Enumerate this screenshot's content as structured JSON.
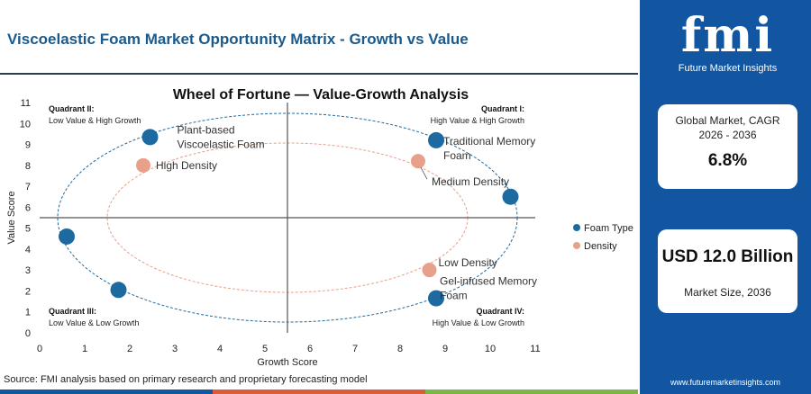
{
  "header": {
    "title": "Viscoelastic Foam Market Opportunity Matrix - Growth vs Value"
  },
  "source": "Source: FMI analysis based on primary research and proprietary forecasting model",
  "colors": {
    "foam_type": "#1c6aa0",
    "density": "#e8a08a",
    "title_blue": "#1b5a8a",
    "panel_blue": "#1255a0"
  },
  "chart_data": {
    "type": "scatter",
    "title": "Wheel of Fortune — Value-Growth Analysis",
    "xlabel": "Growth Score",
    "ylabel": "Value Score",
    "xlim": [
      0,
      11
    ],
    "ylim": [
      0,
      11
    ],
    "xticks": [
      0,
      1,
      2,
      3,
      4,
      5,
      6,
      7,
      8,
      9,
      10,
      11
    ],
    "yticks": [
      0,
      1,
      2,
      3,
      4,
      5,
      6,
      7,
      8,
      9,
      10,
      11
    ],
    "grid": false,
    "legend_position": "right",
    "divider": {
      "x": 5.5,
      "y": 5.5
    },
    "quadrants": [
      {
        "title": "Quadrant II:",
        "subtitle": "Low Value & High Growth",
        "position": "top-left"
      },
      {
        "title": "Quadrant I:",
        "subtitle": "High Value & High Growth",
        "position": "top-right"
      },
      {
        "title": "Quadrant III:",
        "subtitle": "Low Value & Low Growth",
        "position": "bottom-left"
      },
      {
        "title": "Quadrant IV:",
        "subtitle": "High Value & Low Growth",
        "position": "bottom-right"
      }
    ],
    "series": [
      {
        "name": "Foam Type",
        "color": "#1c6aa0",
        "points": [
          {
            "x": 2.45,
            "y": 9.35,
            "label": [
              "Plant-based",
              "Viscoelastic Foam"
            ]
          },
          {
            "x": 8.8,
            "y": 9.2,
            "label": [
              "Traditional Memory",
              "Foam"
            ]
          },
          {
            "x": 10.45,
            "y": 6.5,
            "label": []
          },
          {
            "x": 0.6,
            "y": 4.6,
            "label": []
          },
          {
            "x": 1.75,
            "y": 2.05,
            "label": []
          },
          {
            "x": 8.8,
            "y": 1.65,
            "label": [
              "Gel-infused Memory",
              "Foam"
            ]
          }
        ]
      },
      {
        "name": "Density",
        "color": "#e8a08a",
        "points": [
          {
            "x": 2.3,
            "y": 8.0,
            "label": [
              "High Density"
            ]
          },
          {
            "x": 8.4,
            "y": 8.2,
            "label": [
              "Medium Density"
            ]
          },
          {
            "x": 8.65,
            "y": 3.0,
            "label": [
              "Low Density"
            ]
          }
        ]
      }
    ]
  },
  "side_panel": {
    "logo": "fmi",
    "logo_subtitle": "Future Market Insights",
    "cagr_label": "Global Market, CAGR 2026 - 2036",
    "cagr_value": "6.8%",
    "size_value": "USD 12.0 Billion",
    "size_label": "Market Size, 2036",
    "website": "www.futuremarketinsights.com"
  }
}
